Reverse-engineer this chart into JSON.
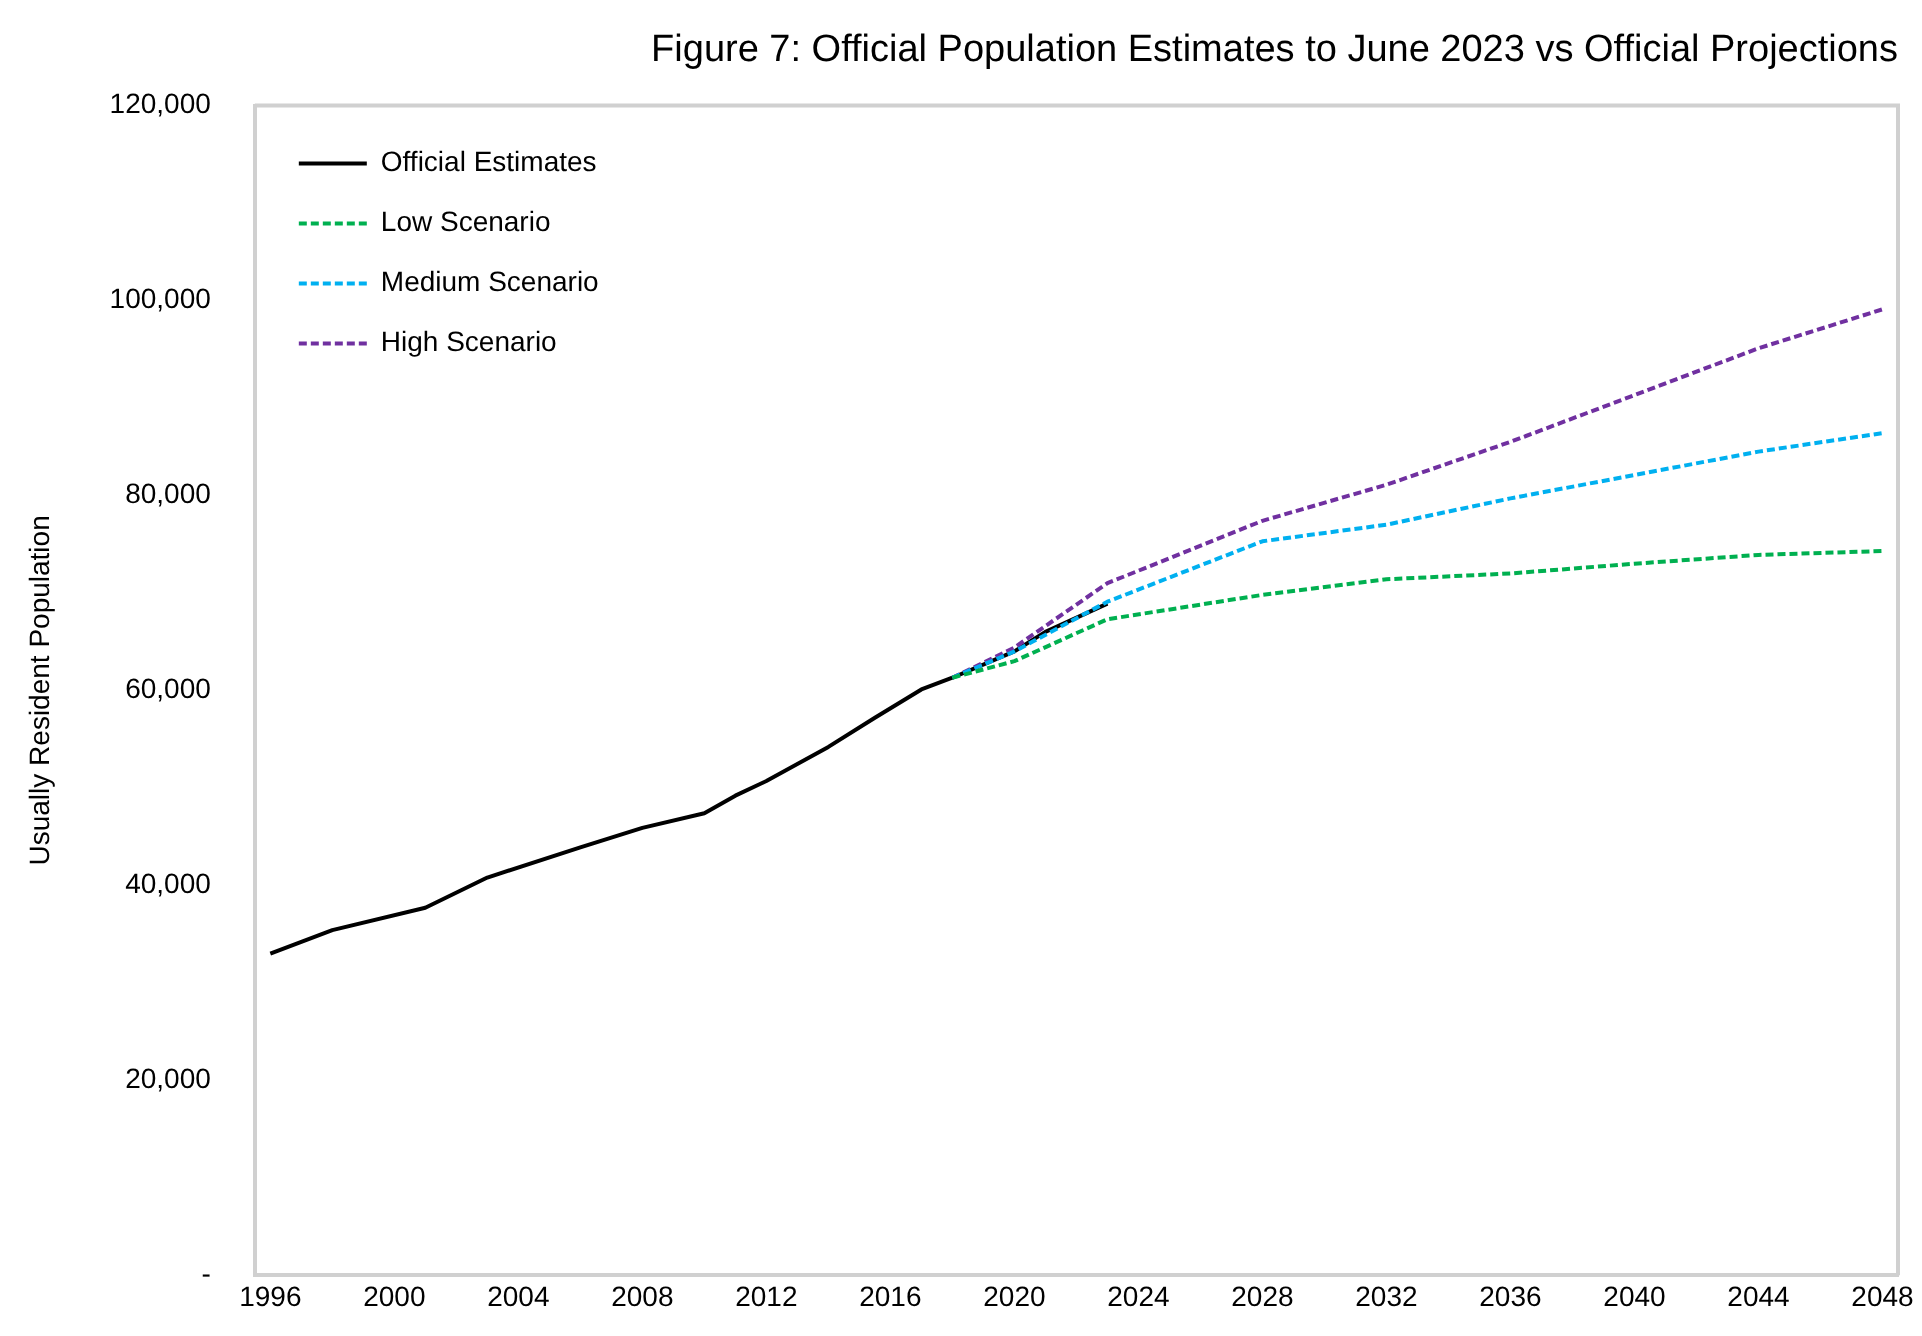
{
  "chart_data": {
    "type": "line",
    "title": "Figure 7: Official Population Estimates to June 2023 vs Official Projections",
    "ylabel": "Usually Resident Population",
    "xlim": [
      1995.5,
      2048.5
    ],
    "xticks": [
      1996,
      2000,
      2004,
      2008,
      2012,
      2016,
      2020,
      2024,
      2028,
      2032,
      2036,
      2040,
      2044,
      2048
    ],
    "ylim": [
      0,
      120000
    ],
    "yticks": [
      {
        "value": 0,
        "label": "-"
      },
      {
        "value": 20000,
        "label": "20,000"
      },
      {
        "value": 40000,
        "label": "40,000"
      },
      {
        "value": 60000,
        "label": "60,000"
      },
      {
        "value": 80000,
        "label": "80,000"
      },
      {
        "value": 100000,
        "label": "100,000"
      },
      {
        "value": 120000,
        "label": "120,000"
      }
    ],
    "grid": false,
    "legend": "top left",
    "marker": "none",
    "series": [
      {
        "name": "Official Estimates",
        "color": "#000000",
        "line_style": "solid",
        "x": [
          1996,
          1998,
          2001,
          2003,
          2006,
          2008,
          2010,
          2011,
          2012,
          2014,
          2015.5,
          2017,
          2018,
          2020,
          2021,
          2023
        ],
        "values": [
          33000,
          35400,
          37700,
          40800,
          43900,
          45900,
          47400,
          49200,
          50700,
          54200,
          57200,
          60100,
          61300,
          64000,
          66000,
          68900
        ]
      },
      {
        "name": "Low Scenario",
        "color": "#00b050",
        "line_style": "dashed",
        "x": [
          2018,
          2020,
          2023,
          2028,
          2032,
          2036,
          2040,
          2044,
          2048
        ],
        "values": [
          61300,
          63000,
          67300,
          69800,
          71400,
          72000,
          73000,
          73900,
          74300
        ]
      },
      {
        "name": "Medium Scenario",
        "color": "#00b0f0",
        "line_style": "dashed",
        "x": [
          2018,
          2020,
          2023,
          2028,
          2032,
          2036,
          2040,
          2044,
          2048
        ],
        "values": [
          61300,
          64000,
          69100,
          75300,
          77000,
          79700,
          82100,
          84500,
          86400
        ]
      },
      {
        "name": "High Scenario",
        "color": "#7030a0",
        "line_style": "dashed",
        "x": [
          2018,
          2020,
          2023,
          2028,
          2032,
          2036,
          2040,
          2044,
          2048
        ],
        "values": [
          61300,
          64400,
          71000,
          77400,
          81100,
          85500,
          90300,
          95100,
          99100
        ]
      }
    ]
  }
}
